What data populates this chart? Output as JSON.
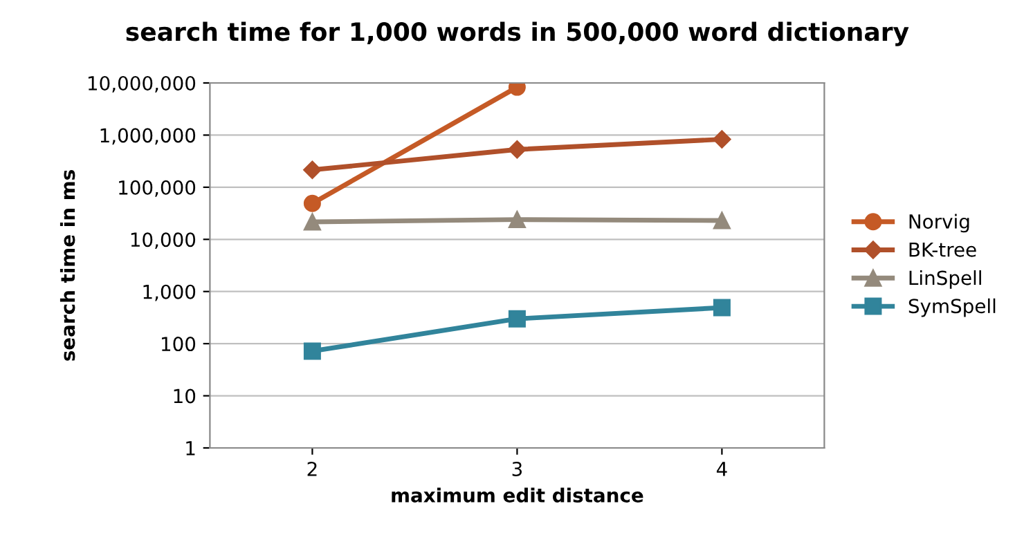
{
  "chart_data": {
    "type": "line",
    "title": "search time for 1,000 words in 500,000 word dictionary",
    "xlabel": "maximum edit distance",
    "ylabel": "search time in ms",
    "categories": [
      "2",
      "3",
      "4"
    ],
    "log": true,
    "ylim": [
      1,
      10000000
    ],
    "yticks": [
      {
        "value": 1,
        "label": "1"
      },
      {
        "value": 10,
        "label": "10"
      },
      {
        "value": 100,
        "label": "100"
      },
      {
        "value": 1000,
        "label": "1,000"
      },
      {
        "value": 10000,
        "label": "10,000"
      },
      {
        "value": 100000,
        "label": "100,000"
      },
      {
        "value": 1000000,
        "label": "1,000,000"
      },
      {
        "value": 10000000,
        "label": "10,000,000"
      }
    ],
    "grid": "y",
    "legend": "right",
    "series": [
      {
        "name": "Norvig",
        "color": "#c55a26",
        "marker": "circle",
        "values": [
          49000,
          8300000,
          null
        ]
      },
      {
        "name": "BK-tree",
        "color": "#b0502a",
        "marker": "diamond",
        "values": [
          215000,
          530000,
          830000
        ]
      },
      {
        "name": "LinSpell",
        "color": "#948a7c",
        "marker": "triangle",
        "values": [
          21600,
          24000,
          23000
        ]
      },
      {
        "name": "SymSpell",
        "color": "#31849b",
        "marker": "square",
        "values": [
          72,
          300,
          490
        ]
      }
    ]
  }
}
